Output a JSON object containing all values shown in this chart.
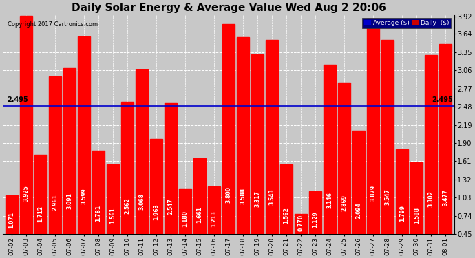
{
  "title": "Daily Solar Energy & Average Value Wed Aug 2 20:06",
  "copyright": "Copyright 2017 Cartronics.com",
  "average_value": 2.495,
  "average_label": "2.495",
  "categories": [
    "07-02",
    "07-03",
    "07-04",
    "07-05",
    "07-06",
    "07-07",
    "07-08",
    "07-09",
    "07-10",
    "07-11",
    "07-12",
    "07-13",
    "07-14",
    "07-15",
    "07-16",
    "07-17",
    "07-18",
    "07-19",
    "07-20",
    "07-21",
    "07-22",
    "07-23",
    "07-24",
    "07-25",
    "07-26",
    "07-27",
    "07-28",
    "07-29",
    "07-30",
    "07-31",
    "08-01"
  ],
  "values": [
    1.071,
    3.925,
    1.712,
    2.961,
    3.091,
    3.599,
    1.781,
    1.561,
    2.562,
    3.068,
    1.963,
    2.547,
    1.18,
    1.661,
    1.213,
    3.8,
    3.588,
    3.317,
    3.543,
    1.562,
    0.77,
    1.129,
    3.146,
    2.869,
    2.094,
    3.879,
    3.547,
    1.799,
    1.588,
    3.302,
    3.477
  ],
  "bar_color": "#ff0000",
  "avg_line_color": "#0000cc",
  "ylim_min": 0.45,
  "ylim_max": 3.92,
  "yticks": [
    0.45,
    0.74,
    1.03,
    1.32,
    1.61,
    1.9,
    2.19,
    2.48,
    2.77,
    3.06,
    3.35,
    3.64,
    3.92
  ],
  "background_color": "#c8c8c8",
  "plot_bg_color": "#c8c8c8",
  "grid_color": "#ffffff",
  "title_fontsize": 11,
  "bar_width": 0.85,
  "legend_avg_color": "#0000cc",
  "legend_daily_color": "#cc0000",
  "value_label_fontsize": 5.5,
  "copyright_fontsize": 6,
  "tick_fontsize": 7
}
